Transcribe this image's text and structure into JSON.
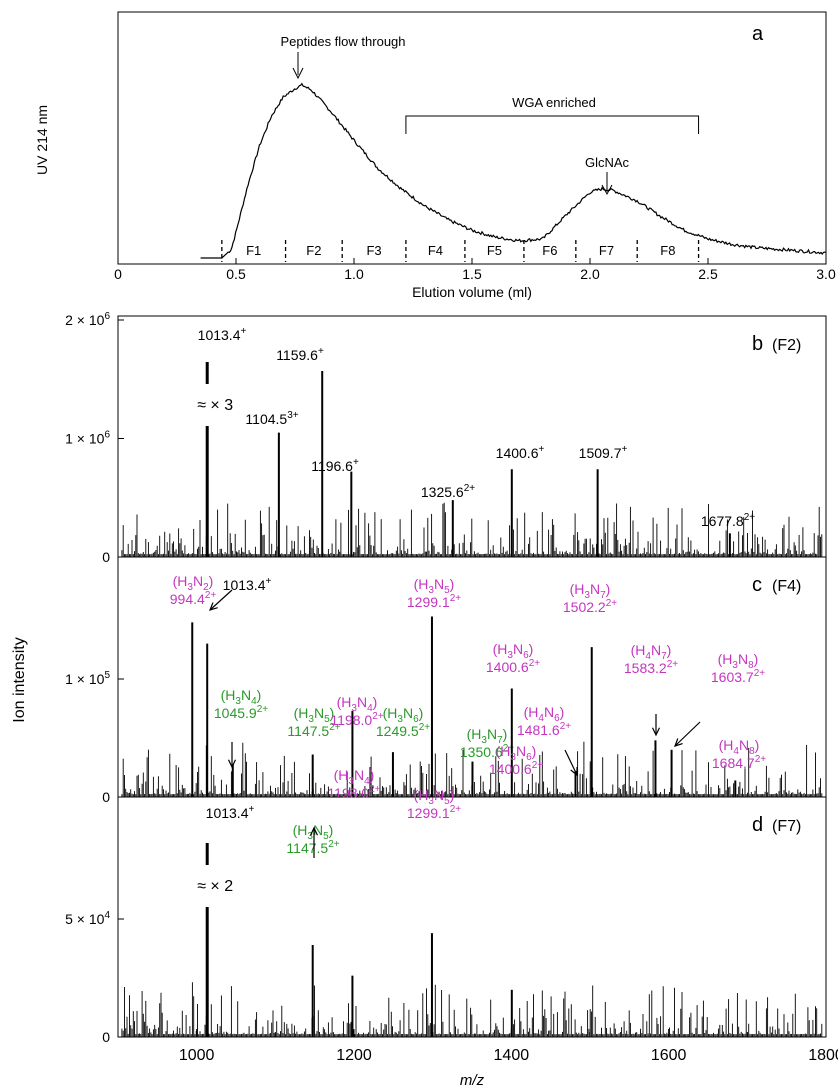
{
  "colors": {
    "magenta": "#c436c0",
    "green": "#2a9a2a",
    "black": "#000000"
  },
  "chart_data": [
    {
      "type": "line",
      "panel_label": "a",
      "ylabel": "UV 214 nm",
      "xlabel": "Elution volume (ml)",
      "xlim": [
        0,
        3.0
      ],
      "x_ticks": [
        "0",
        "0.5",
        "1.0",
        "1.5",
        "2.0",
        "2.5",
        "3.0"
      ],
      "fractions": [
        "F1",
        "F2",
        "F3",
        "F4",
        "F5",
        "F6",
        "F7",
        "F8"
      ],
      "fraction_boundaries": [
        0.44,
        0.71,
        0.95,
        1.22,
        1.47,
        1.72,
        1.94,
        2.2,
        2.46
      ],
      "annotations": {
        "peptides": "Peptides flow through",
        "wga": "WGA enriched",
        "glcnac": "GlcNAc"
      },
      "wga_range": [
        1.22,
        2.46
      ],
      "series": [
        {
          "x": [
            0.35,
            0.44,
            0.48,
            0.5,
            0.55,
            0.6,
            0.65,
            0.7,
            0.75,
            0.78,
            0.82,
            0.9,
            1.0,
            1.1,
            1.2,
            1.3,
            1.4,
            1.5,
            1.6,
            1.7,
            1.8,
            1.9,
            2.0,
            2.05,
            2.1,
            2.2,
            2.3,
            2.4,
            2.5,
            2.6,
            2.7,
            2.8,
            2.9,
            3.0
          ],
          "y": [
            0,
            0,
            0.05,
            0.15,
            0.42,
            0.65,
            0.82,
            0.93,
            0.98,
            1.0,
            0.97,
            0.85,
            0.68,
            0.52,
            0.4,
            0.3,
            0.22,
            0.16,
            0.12,
            0.1,
            0.11,
            0.25,
            0.38,
            0.4,
            0.39,
            0.33,
            0.24,
            0.16,
            0.11,
            0.08,
            0.06,
            0.05,
            0.04,
            0.03
          ]
        }
      ]
    },
    {
      "type": "bar",
      "panel_label": "b",
      "fraction": "(F2)",
      "y_ticks": [
        {
          "mant": "0",
          "exp": ""
        },
        {
          "mant": "1 × 10",
          "exp": "6"
        },
        {
          "mant": "2 × 10",
          "exp": "6"
        }
      ],
      "ylim": [
        0,
        2000000
      ],
      "break_note": "≈ × 3",
      "peaks": [
        {
          "mz": 1013.4,
          "value": 1800000,
          "label": "1013.4",
          "charge": "+",
          "color": "black",
          "broken": true
        },
        {
          "mz": 1104.5,
          "value": 1050000,
          "label": "1104.5",
          "charge": "3+",
          "color": "black"
        },
        {
          "mz": 1159.6,
          "value": 1570000,
          "label": "1159.6",
          "charge": "+",
          "color": "black"
        },
        {
          "mz": 1196.6,
          "value": 720000,
          "label": "1196.6",
          "charge": "+",
          "color": "black"
        },
        {
          "mz": 1325.6,
          "value": 480000,
          "label": "1325.6",
          "charge": "2+",
          "color": "black"
        },
        {
          "mz": 1400.6,
          "value": 740000,
          "label": "1400.6",
          "charge": "+",
          "color": "black"
        },
        {
          "mz": 1509.7,
          "value": 740000,
          "label": "1509.7",
          "charge": "+",
          "color": "black"
        },
        {
          "mz": 1677.8,
          "value": 200000,
          "label": "1677.8",
          "charge": "2+",
          "color": "black"
        }
      ]
    },
    {
      "type": "bar",
      "panel_label": "c",
      "fraction": "(F4)",
      "y_ticks": [
        {
          "mant": "0",
          "exp": ""
        },
        {
          "mant": "1 × 10",
          "exp": "5"
        }
      ],
      "ylim": [
        0,
        200000
      ],
      "peaks": [
        {
          "mz": 994.4,
          "value": 148000,
          "label": "994.4",
          "charge": "2+",
          "composition": "(H3N2)",
          "color": "magenta"
        },
        {
          "mz": 1013.4,
          "value": 130000,
          "label": "1013.4",
          "charge": "+",
          "color": "black",
          "arrow": true
        },
        {
          "mz": 1045.9,
          "value": 28000,
          "label": "1045.9",
          "charge": "2+",
          "composition": "(H3N4)",
          "color": "green",
          "arrow": true
        },
        {
          "mz": 1147.5,
          "value": 36000,
          "label": "1147.5",
          "charge": "2+",
          "composition": "(H3N5)",
          "color": "green"
        },
        {
          "mz": 1198.0,
          "value": 73000,
          "label": "1198.0",
          "charge": "2+",
          "composition": "(H3N4)",
          "color": "magenta"
        },
        {
          "mz": 1249.5,
          "value": 38000,
          "label": "1249.5",
          "charge": "2+",
          "composition": "(H3N6)",
          "color": "green"
        },
        {
          "mz": 1299.1,
          "value": 153000,
          "label": "1299.1",
          "charge": "2+",
          "composition": "(H3N5)",
          "color": "magenta"
        },
        {
          "mz": 1350.6,
          "value": 30000,
          "label": "1350.6",
          "charge": "2+",
          "composition": "(H3N7)",
          "color": "green"
        },
        {
          "mz": 1400.6,
          "value": 92000,
          "label": "1400.6",
          "charge": "2+",
          "composition": "(H3N6)",
          "color": "magenta"
        },
        {
          "mz": 1481.6,
          "value": 22000,
          "label": "1481.6",
          "charge": "2+",
          "composition": "(H4N6)",
          "color": "magenta",
          "arrow": true
        },
        {
          "mz": 1502.2,
          "value": 127000,
          "label": "1502.2",
          "charge": "2+",
          "composition": "(H3N7)",
          "color": "magenta"
        },
        {
          "mz": 1583.2,
          "value": 48000,
          "label": "1583.2",
          "charge": "2+",
          "composition": "(H4N7)",
          "color": "magenta",
          "arrow": true
        },
        {
          "mz": 1603.7,
          "value": 40000,
          "label": "1603.7",
          "charge": "2+",
          "composition": "(H3N8)",
          "color": "magenta",
          "arrow": true
        },
        {
          "mz": 1684.7,
          "value": 14000,
          "label": "1684.7",
          "charge": "2+",
          "composition": "(H4N8)",
          "color": "magenta"
        }
      ]
    },
    {
      "type": "bar",
      "panel_label": "d",
      "fraction": "(F7)",
      "y_ticks": [
        {
          "mant": "0",
          "exp": ""
        },
        {
          "mant": "5 × 10",
          "exp": "4"
        }
      ],
      "ylim": [
        0,
        100000
      ],
      "break_note": "≈ × 2",
      "x_ticks": [
        "1000",
        "1200",
        "1400",
        "1600",
        "1800"
      ],
      "xlim": [
        900,
        1800
      ],
      "xlabel": "m/z",
      "peaks": [
        {
          "mz": 1013.4,
          "value": 90000,
          "label": "1013.4",
          "charge": "+",
          "color": "black",
          "broken": true
        },
        {
          "mz": 1147.5,
          "value": 39000,
          "label": "1147.5",
          "charge": "2+",
          "composition": "(H3N5)",
          "color": "green",
          "arrow": true
        },
        {
          "mz": 1198.0,
          "value": 26000,
          "label": "1198.0",
          "charge": "2+",
          "composition": "(H3N4)",
          "color": "magenta"
        },
        {
          "mz": 1299.1,
          "value": 44000,
          "label": "1299.1",
          "charge": "2+",
          "composition": "(H3N5)",
          "color": "magenta"
        },
        {
          "mz": 1400.6,
          "value": 20000,
          "label": "1400.6",
          "charge": "2+",
          "composition": "(H3N6)",
          "color": "magenta"
        }
      ]
    }
  ],
  "shared_ylabel": "Ion intensity"
}
